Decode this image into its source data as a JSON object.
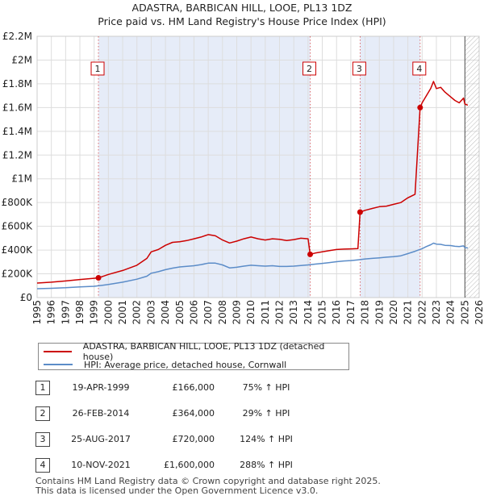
{
  "chart_data": {
    "type": "line",
    "title": "ADASTRA, BARBICAN HILL, LOOE, PL13 1DZ",
    "subtitle": "Price paid vs. HM Land Registry's House Price Index (HPI)",
    "xlim": [
      1995.0,
      2026.0
    ],
    "ylim": [
      0,
      2200000
    ],
    "x_ticks": [
      "1995",
      "1996",
      "1997",
      "1998",
      "1999",
      "2000",
      "2001",
      "2002",
      "2003",
      "2004",
      "2005",
      "2006",
      "2007",
      "2008",
      "2009",
      "2010",
      "2011",
      "2012",
      "2013",
      "2014",
      "2015",
      "2016",
      "2017",
      "2018",
      "2019",
      "2020",
      "2021",
      "2022",
      "2023",
      "2024",
      "2025",
      "2026"
    ],
    "y_ticks": [
      {
        "value": 0,
        "label": "£0"
      },
      {
        "value": 200000,
        "label": "£200K"
      },
      {
        "value": 400000,
        "label": "£400K"
      },
      {
        "value": 600000,
        "label": "£600K"
      },
      {
        "value": 800000,
        "label": "£800K"
      },
      {
        "value": 1000000,
        "label": "£1M"
      },
      {
        "value": 1200000,
        "label": "£1.2M"
      },
      {
        "value": 1400000,
        "label": "£1.4M"
      },
      {
        "value": 1600000,
        "label": "£1.6M"
      },
      {
        "value": 1800000,
        "label": "£1.8M"
      },
      {
        "value": 2000000,
        "label": "£2M"
      },
      {
        "value": 2200000,
        "label": "£2.2M"
      }
    ],
    "series": [
      {
        "name": "ADASTRA, BARBICAN HILL, LOOE, PL13 1DZ (detached house)",
        "color": "#cc0000",
        "x": [
          1995.0,
          1996.0,
          1997.0,
          1998.0,
          1999.3,
          2000.0,
          2001.0,
          2002.0,
          2002.7,
          2003.0,
          2003.5,
          2004.0,
          2004.5,
          2005.0,
          2005.5,
          2006.0,
          2006.5,
          2007.0,
          2007.5,
          2008.0,
          2008.5,
          2009.0,
          2009.5,
          2010.0,
          2010.5,
          2011.0,
          2011.5,
          2012.0,
          2012.5,
          2013.0,
          2013.5,
          2014.0,
          2014.15,
          2014.5,
          2015.0,
          2015.5,
          2016.0,
          2016.5,
          2017.0,
          2017.5,
          2017.65,
          2018.0,
          2018.5,
          2019.0,
          2019.5,
          2020.0,
          2020.5,
          2021.0,
          2021.5,
          2021.86,
          2022.0,
          2022.3,
          2022.6,
          2022.8,
          2023.0,
          2023.3,
          2023.6,
          2024.0,
          2024.3,
          2024.6,
          2024.9,
          2025.0,
          2025.2
        ],
        "values": [
          122000,
          130000,
          140000,
          152000,
          166000,
          195000,
          228000,
          272000,
          330000,
          385000,
          405000,
          440000,
          465000,
          470000,
          480000,
          495000,
          510000,
          530000,
          520000,
          485000,
          460000,
          475000,
          495000,
          510000,
          495000,
          485000,
          495000,
          490000,
          480000,
          488000,
          500000,
          495000,
          364000,
          375000,
          385000,
          395000,
          405000,
          408000,
          410000,
          412000,
          720000,
          735000,
          750000,
          765000,
          770000,
          785000,
          800000,
          840000,
          870000,
          1600000,
          1640000,
          1700000,
          1760000,
          1820000,
          1760000,
          1770000,
          1730000,
          1690000,
          1660000,
          1640000,
          1680000,
          1630000,
          1620000
        ]
      },
      {
        "name": "HPI: Average price, detached house, Cornwall",
        "color": "#5b8cc8",
        "x": [
          1995.0,
          1996.0,
          1997.0,
          1998.0,
          1999.0,
          2000.0,
          2001.0,
          2002.0,
          2002.7,
          2003.0,
          2003.5,
          2004.0,
          2004.5,
          2005.0,
          2005.5,
          2006.0,
          2006.5,
          2007.0,
          2007.5,
          2008.0,
          2008.5,
          2009.0,
          2009.5,
          2010.0,
          2010.5,
          2011.0,
          2011.5,
          2012.0,
          2012.5,
          2013.0,
          2013.5,
          2014.0,
          2014.5,
          2015.0,
          2015.5,
          2016.0,
          2016.5,
          2017.0,
          2017.5,
          2018.0,
          2018.5,
          2019.0,
          2019.5,
          2020.0,
          2020.5,
          2021.0,
          2021.5,
          2022.0,
          2022.3,
          2022.6,
          2022.8,
          2023.0,
          2023.3,
          2023.6,
          2024.0,
          2024.3,
          2024.6,
          2024.9,
          2025.0,
          2025.2
        ],
        "values": [
          75000,
          78000,
          83000,
          90000,
          95000,
          110000,
          130000,
          155000,
          180000,
          205000,
          218000,
          235000,
          248000,
          258000,
          263000,
          268000,
          278000,
          290000,
          290000,
          275000,
          250000,
          255000,
          265000,
          272000,
          268000,
          265000,
          268000,
          262000,
          262000,
          265000,
          270000,
          275000,
          282000,
          288000,
          295000,
          302000,
          308000,
          312000,
          318000,
          325000,
          330000,
          335000,
          340000,
          345000,
          352000,
          370000,
          390000,
          412000,
          430000,
          445000,
          458000,
          450000,
          448000,
          440000,
          438000,
          432000,
          430000,
          435000,
          420000,
          418000
        ]
      }
    ],
    "sales": [
      {
        "n": "1",
        "x": 1999.3,
        "value": 166000,
        "date": "19-APR-1999",
        "price": "£166,000",
        "hpi": "75% ↑ HPI"
      },
      {
        "n": "2",
        "x": 2014.15,
        "value": 364000,
        "date": "26-FEB-2014",
        "price": "£364,000",
        "hpi": "29% ↑ HPI"
      },
      {
        "n": "3",
        "x": 2017.65,
        "value": 720000,
        "date": "25-AUG-2017",
        "price": "£720,000",
        "hpi": "124% ↑ HPI"
      },
      {
        "n": "4",
        "x": 2021.86,
        "value": 1600000,
        "date": "10-NOV-2021",
        "price": "£1,600,000",
        "hpi": "288% ↑ HPI"
      }
    ]
  },
  "colors": {
    "property": "#cc0000",
    "hpi": "#5b8cc8",
    "band": "#e6ecf8",
    "grid": "#dddddd"
  },
  "legend": {
    "property_label": "ADASTRA, BARBICAN HILL, LOOE, PL13 1DZ (detached house)",
    "hpi_label": "HPI: Average price, detached house, Cornwall"
  },
  "footer": {
    "line1": "Contains HM Land Registry data © Crown copyright and database right 2025.",
    "line2": "This data is licensed under the Open Government Licence v3.0."
  }
}
